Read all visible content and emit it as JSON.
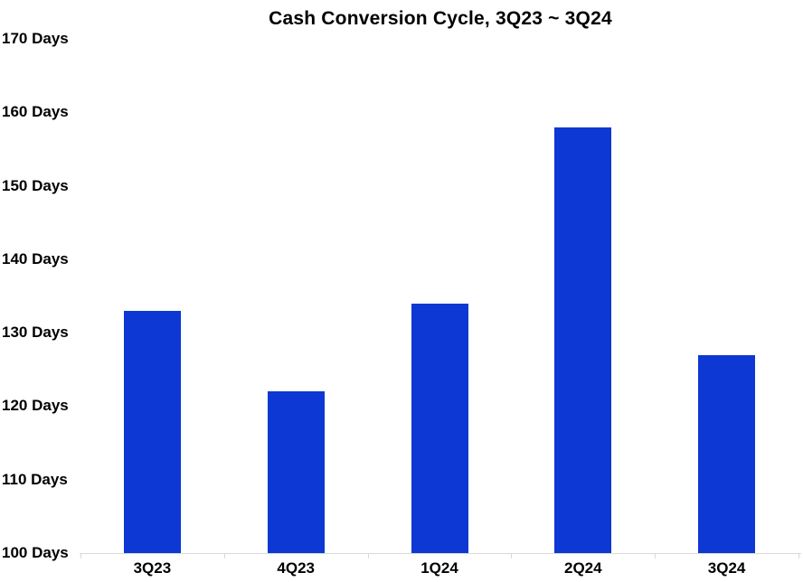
{
  "chart_data": {
    "type": "bar",
    "title": "Cash Conversion Cycle, 3Q23 ~ 3Q24",
    "categories": [
      "3Q23",
      "4Q23",
      "1Q24",
      "2Q24",
      "3Q24"
    ],
    "values": [
      133,
      122,
      134,
      158,
      127
    ],
    "unit": "Days",
    "ylim": [
      100,
      170
    ],
    "ytick_step": 10,
    "ytick_labels": [
      "100 Days",
      "110 Days",
      "120 Days",
      "130 Days",
      "140 Days",
      "150 Days",
      "160 Days",
      "170 Days"
    ],
    "xlabel": "",
    "ylabel": "",
    "grid": "off",
    "legend": "none",
    "colors": {
      "bar": "#0D38D4",
      "axis": "#D9D9D9",
      "text": "#000000",
      "background": "#FFFFFF"
    }
  }
}
